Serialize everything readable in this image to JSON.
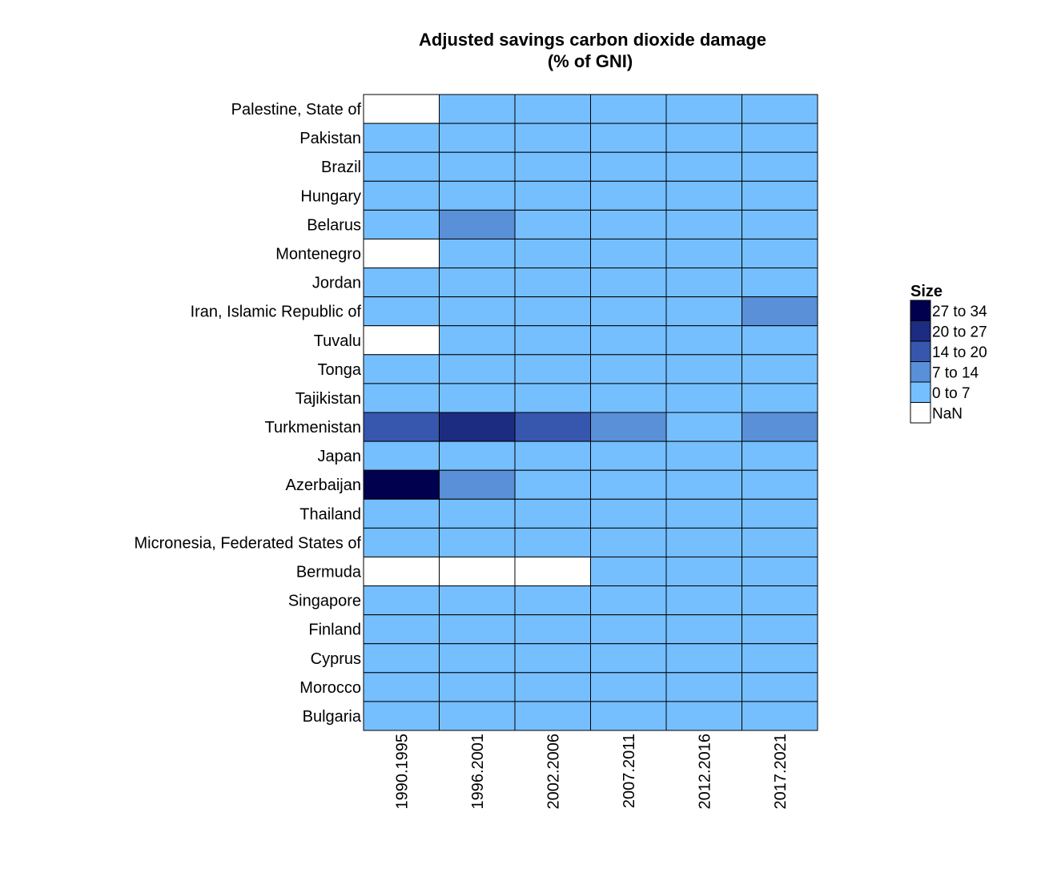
{
  "chart_data": {
    "type": "heatmap",
    "title": [
      "Adjusted savings carbon dioxide damage",
      "(% of GNI)"
    ],
    "xlabel": "",
    "ylabel": "",
    "x": [
      "1990.1995",
      "1996.2001",
      "2002.2006",
      "2007.2011",
      "2012.2016",
      "2017.2021"
    ],
    "y": [
      "Palestine, State of",
      "Pakistan",
      "Brazil",
      "Hungary",
      "Belarus",
      "Montenegro",
      "Jordan",
      "Iran, Islamic Republic of",
      "Tuvalu",
      "Tonga",
      "Tajikistan",
      "Turkmenistan",
      "Japan",
      "Azerbaijan",
      "Thailand",
      "Micronesia, Federated States of",
      "Bermuda",
      "Singapore",
      "Finland",
      "Cyprus",
      "Morocco",
      "Bulgaria"
    ],
    "cells": [
      [
        "NaN",
        "0 to 7",
        "0 to 7",
        "0 to 7",
        "0 to 7",
        "0 to 7"
      ],
      [
        "0 to 7",
        "0 to 7",
        "0 to 7",
        "0 to 7",
        "0 to 7",
        "0 to 7"
      ],
      [
        "0 to 7",
        "0 to 7",
        "0 to 7",
        "0 to 7",
        "0 to 7",
        "0 to 7"
      ],
      [
        "0 to 7",
        "0 to 7",
        "0 to 7",
        "0 to 7",
        "0 to 7",
        "0 to 7"
      ],
      [
        "0 to 7",
        "7 to 14",
        "0 to 7",
        "0 to 7",
        "0 to 7",
        "0 to 7"
      ],
      [
        "NaN",
        "0 to 7",
        "0 to 7",
        "0 to 7",
        "0 to 7",
        "0 to 7"
      ],
      [
        "0 to 7",
        "0 to 7",
        "0 to 7",
        "0 to 7",
        "0 to 7",
        "0 to 7"
      ],
      [
        "0 to 7",
        "0 to 7",
        "0 to 7",
        "0 to 7",
        "0 to 7",
        "7 to 14"
      ],
      [
        "NaN",
        "0 to 7",
        "0 to 7",
        "0 to 7",
        "0 to 7",
        "0 to 7"
      ],
      [
        "0 to 7",
        "0 to 7",
        "0 to 7",
        "0 to 7",
        "0 to 7",
        "0 to 7"
      ],
      [
        "0 to 7",
        "0 to 7",
        "0 to 7",
        "0 to 7",
        "0 to 7",
        "0 to 7"
      ],
      [
        "14 to 20",
        "20 to 27",
        "14 to 20",
        "7 to 14",
        "0 to 7",
        "7 to 14"
      ],
      [
        "0 to 7",
        "0 to 7",
        "0 to 7",
        "0 to 7",
        "0 to 7",
        "0 to 7"
      ],
      [
        "27 to 34",
        "7 to 14",
        "0 to 7",
        "0 to 7",
        "0 to 7",
        "0 to 7"
      ],
      [
        "0 to 7",
        "0 to 7",
        "0 to 7",
        "0 to 7",
        "0 to 7",
        "0 to 7"
      ],
      [
        "0 to 7",
        "0 to 7",
        "0 to 7",
        "0 to 7",
        "0 to 7",
        "0 to 7"
      ],
      [
        "NaN",
        "NaN",
        "NaN",
        "0 to 7",
        "0 to 7",
        "0 to 7"
      ],
      [
        "0 to 7",
        "0 to 7",
        "0 to 7",
        "0 to 7",
        "0 to 7",
        "0 to 7"
      ],
      [
        "0 to 7",
        "0 to 7",
        "0 to 7",
        "0 to 7",
        "0 to 7",
        "0 to 7"
      ],
      [
        "0 to 7",
        "0 to 7",
        "0 to 7",
        "0 to 7",
        "0 to 7",
        "0 to 7"
      ],
      [
        "0 to 7",
        "0 to 7",
        "0 to 7",
        "0 to 7",
        "0 to 7",
        "0 to 7"
      ],
      [
        "0 to 7",
        "0 to 7",
        "0 to 7",
        "0 to 7",
        "0 to 7",
        "0 to 7"
      ]
    ],
    "legend": {
      "title": "Size",
      "placement": "right",
      "bins": [
        {
          "label": "27 to 34",
          "color": "#00004f"
        },
        {
          "label": "20 to 27",
          "color": "#1c2c80"
        },
        {
          "label": "14 to 20",
          "color": "#3757ae"
        },
        {
          "label": "7 to 14",
          "color": "#5990d7"
        },
        {
          "label": "0 to 7",
          "color": "#76bfff"
        },
        {
          "label": "NaN",
          "color": "#ffffff"
        }
      ]
    }
  }
}
